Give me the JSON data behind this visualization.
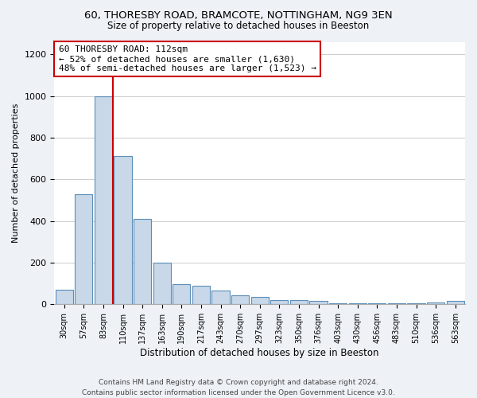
{
  "title1": "60, THORESBY ROAD, BRAMCOTE, NOTTINGHAM, NG9 3EN",
  "title2": "Size of property relative to detached houses in Beeston",
  "xlabel": "Distribution of detached houses by size in Beeston",
  "ylabel": "Number of detached properties",
  "categories": [
    "30sqm",
    "57sqm",
    "83sqm",
    "110sqm",
    "137sqm",
    "163sqm",
    "190sqm",
    "217sqm",
    "243sqm",
    "270sqm",
    "297sqm",
    "323sqm",
    "350sqm",
    "376sqm",
    "403sqm",
    "430sqm",
    "456sqm",
    "483sqm",
    "510sqm",
    "536sqm",
    "563sqm"
  ],
  "values": [
    70,
    530,
    1000,
    710,
    410,
    200,
    95,
    90,
    65,
    45,
    35,
    20,
    20,
    15,
    5,
    5,
    5,
    5,
    5,
    10,
    15
  ],
  "bar_color": "#c8d8e8",
  "bar_edge_color": "#5b8db8",
  "vline_color": "#cc0000",
  "annotation_text": "60 THORESBY ROAD: 112sqm\n← 52% of detached houses are smaller (1,630)\n48% of semi-detached houses are larger (1,523) →",
  "annotation_box_color": "#ffffff",
  "annotation_box_edge_color": "#cc0000",
  "bg_color": "#eef2f7",
  "plot_bg_color": "#ffffff",
  "footer": "Contains HM Land Registry data © Crown copyright and database right 2024.\nContains public sector information licensed under the Open Government Licence v3.0.",
  "ylim": [
    0,
    1260
  ],
  "yticks": [
    0,
    200,
    400,
    600,
    800,
    1000,
    1200
  ]
}
